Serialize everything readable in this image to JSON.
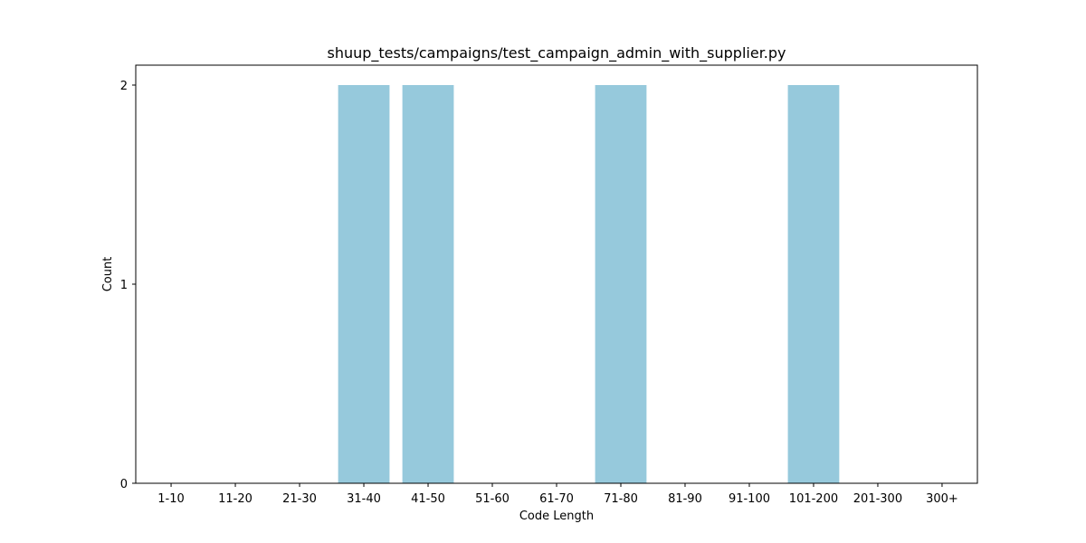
{
  "chart_data": {
    "type": "bar",
    "title": "shuup_tests/campaigns/test_campaign_admin_with_supplier.py",
    "xlabel": "Code Length",
    "ylabel": "Count",
    "categories": [
      "1-10",
      "11-20",
      "21-30",
      "31-40",
      "41-50",
      "51-60",
      "61-70",
      "71-80",
      "81-90",
      "91-100",
      "101-200",
      "201-300",
      "300+"
    ],
    "values": [
      0,
      0,
      0,
      2,
      2,
      0,
      0,
      2,
      0,
      0,
      2,
      0,
      0
    ],
    "ylim": [
      0,
      2.1
    ],
    "yticks": [
      0,
      1,
      2
    ],
    "bar_color": "#96c9dc",
    "grid": false
  }
}
